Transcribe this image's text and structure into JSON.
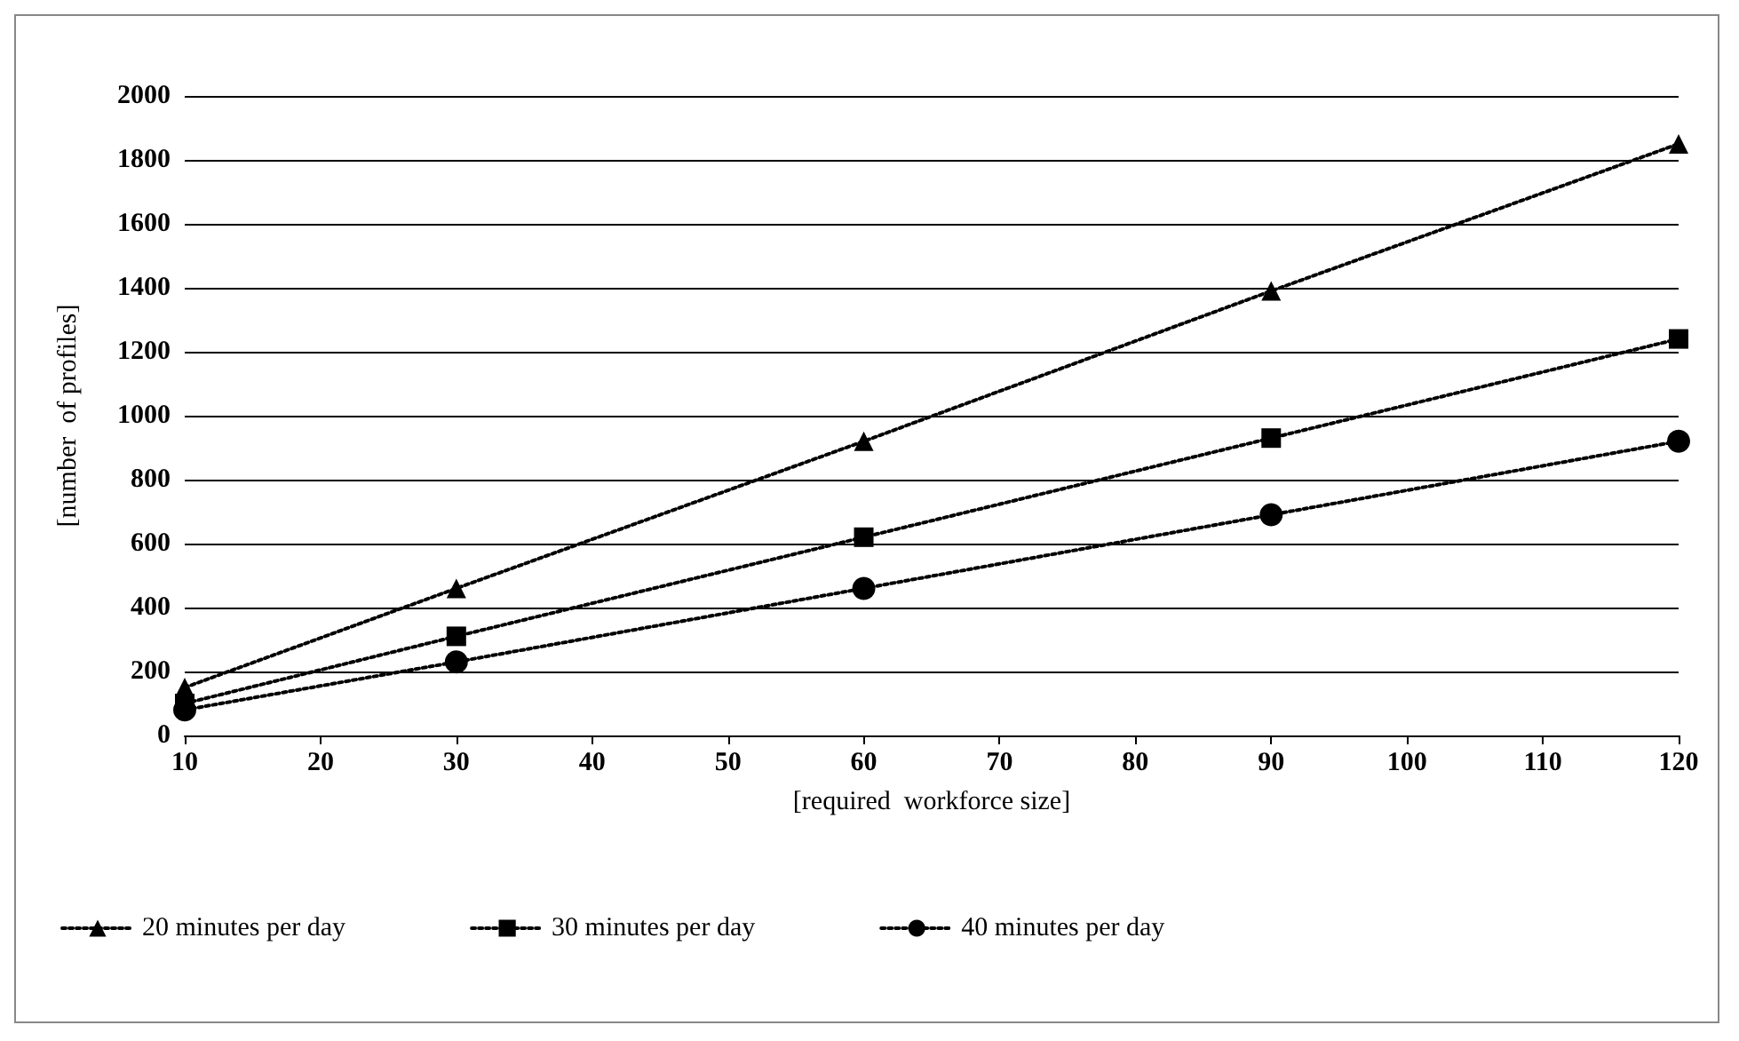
{
  "chart_data": {
    "type": "line",
    "xlabel": "[required  workforce size]",
    "ylabel": "[number  of profiles]",
    "x": [
      10,
      30,
      60,
      90,
      120
    ],
    "series": [
      {
        "name": "20 minutes per day",
        "color": "#000000",
        "marker": "triangle",
        "values": [
          150,
          460,
          920,
          1390,
          1850
        ]
      },
      {
        "name": "30 minutes per day",
        "color": "#000000",
        "marker": "square",
        "values": [
          100,
          310,
          620,
          930,
          1240
        ]
      },
      {
        "name": "40 minutes per day",
        "color": "#000000",
        "marker": "circle",
        "values": [
          80,
          230,
          460,
          690,
          920
        ]
      }
    ],
    "line_style": "dotted",
    "xlim": [
      10,
      120
    ],
    "xticks": [
      10,
      20,
      30,
      40,
      50,
      60,
      70,
      80,
      90,
      100,
      110,
      120
    ],
    "ylim": [
      0,
      2000
    ],
    "yticks": [
      0,
      200,
      400,
      600,
      800,
      1000,
      1200,
      1400,
      1600,
      1800,
      2000
    ],
    "grid": "y",
    "legend": "bottom left"
  }
}
